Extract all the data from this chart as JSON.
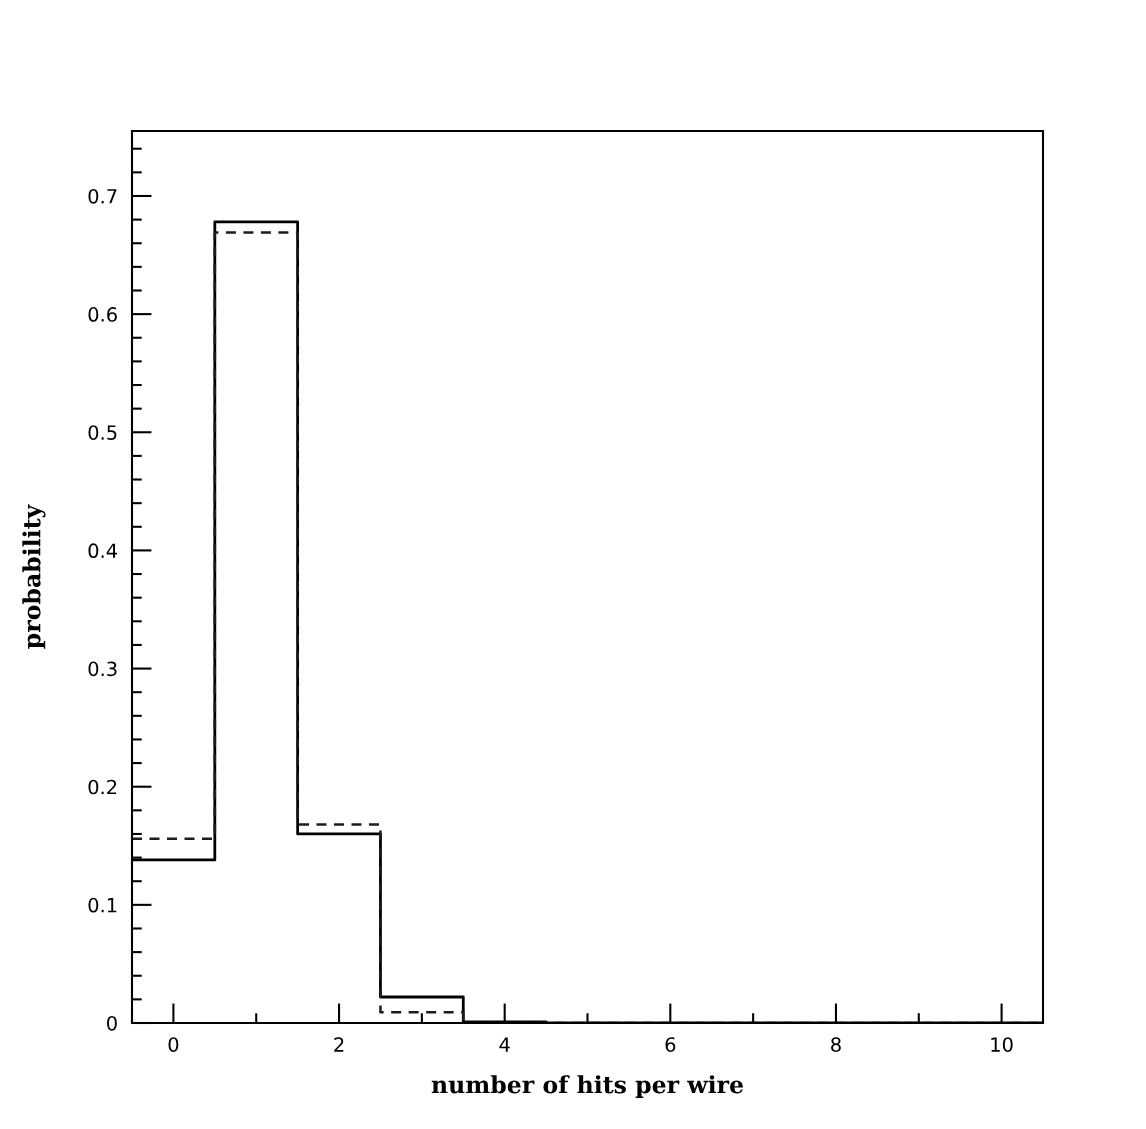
{
  "chart_data": {
    "type": "histogram",
    "xlabel": "number of hits per wire",
    "ylabel": "probability",
    "bins": [
      -0.5,
      0.5,
      1.5,
      2.5,
      3.5,
      4.5,
      5.5,
      6.5,
      7.5,
      8.5,
      9.5,
      10.5
    ],
    "series": [
      {
        "color": "#000000",
        "line_style": "solid",
        "values": [
          0.138,
          0.678,
          0.16,
          0.022,
          0.001,
          0,
          0,
          0,
          0,
          0,
          0
        ]
      },
      {
        "color": "#1c1c1c",
        "line_style": "dashed",
        "values": [
          0.156,
          0.669,
          0.168,
          0.009,
          0,
          0,
          0,
          0,
          0,
          0,
          0
        ]
      }
    ],
    "xlim": [
      -0.5,
      10.5
    ],
    "ylim": [
      0,
      0.755
    ],
    "xticks": [
      0,
      {
        "value": 1,
        "label": null
      },
      2,
      {
        "value": 3,
        "label": null
      },
      4,
      {
        "value": 5,
        "label": null
      },
      6,
      {
        "value": 7,
        "label": null
      },
      8,
      {
        "value": 9,
        "label": null
      },
      10
    ],
    "yticks": [
      0,
      {
        "value": 0.02,
        "label": null
      },
      {
        "value": 0.04,
        "label": null
      },
      {
        "value": 0.06,
        "label": null
      },
      {
        "value": 0.08,
        "label": null
      },
      0.1,
      {
        "value": 0.12,
        "label": null
      },
      {
        "value": 0.14,
        "label": null
      },
      {
        "value": 0.16,
        "label": null
      },
      {
        "value": 0.18,
        "label": null
      },
      0.2,
      {
        "value": 0.22,
        "label": null
      },
      {
        "value": 0.24,
        "label": null
      },
      {
        "value": 0.26,
        "label": null
      },
      {
        "value": 0.28,
        "label": null
      },
      0.3,
      {
        "value": 0.32,
        "label": null
      },
      {
        "value": 0.34,
        "label": null
      },
      {
        "value": 0.36,
        "label": null
      },
      {
        "value": 0.38,
        "label": null
      },
      0.4,
      {
        "value": 0.42,
        "label": null
      },
      {
        "value": 0.44,
        "label": null
      },
      {
        "value": 0.46,
        "label": null
      },
      {
        "value": 0.48,
        "label": null
      },
      0.5,
      {
        "value": 0.52,
        "label": null
      },
      {
        "value": 0.54,
        "label": null
      },
      {
        "value": 0.56,
        "label": null
      },
      {
        "value": 0.58,
        "label": null
      },
      0.6,
      {
        "value": 0.62,
        "label": null
      },
      {
        "value": 0.64,
        "label": null
      },
      {
        "value": 0.66,
        "label": null
      },
      {
        "value": 0.68,
        "label": null
      },
      0.7,
      {
        "value": 0.72,
        "label": null
      },
      {
        "value": 0.74,
        "label": null
      }
    ],
    "grid": false
  }
}
